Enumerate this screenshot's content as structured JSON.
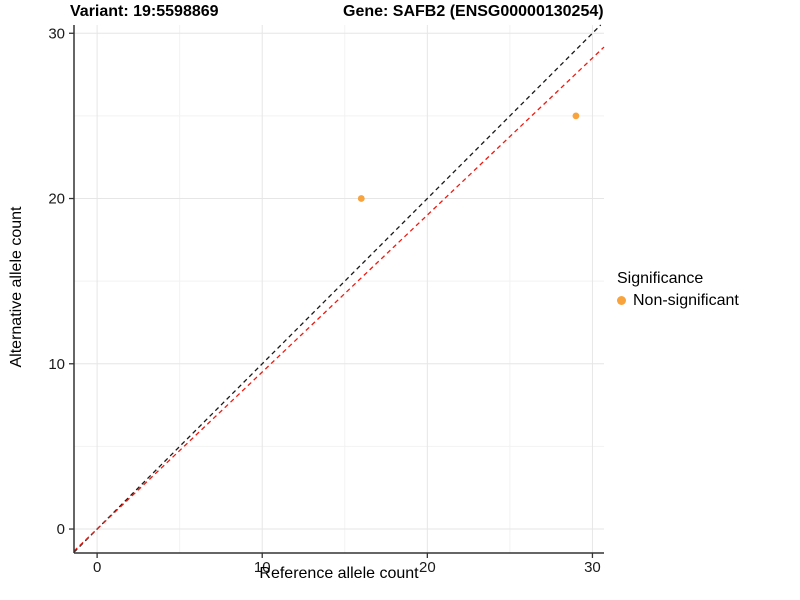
{
  "header": {
    "variant_title": "Variant: 19:5598869",
    "gene_title": "Gene: SAFB2 (ENSG00000130254)"
  },
  "chart_data": {
    "type": "scatter",
    "xlabel": "Reference allele count",
    "ylabel": "Alternative allele count",
    "xlim": [
      -1.4,
      30.7
    ],
    "ylim": [
      -1.45,
      30.5
    ],
    "x_ticks": [
      0,
      10,
      20,
      30
    ],
    "y_ticks": [
      0,
      10,
      20,
      30
    ],
    "x_minor_ticks": [
      5,
      15,
      25
    ],
    "y_minor_ticks": [
      5,
      15,
      25
    ],
    "grid": true,
    "points": [
      {
        "x": 16,
        "y": 20,
        "series": "Non-significant"
      },
      {
        "x": 29,
        "y": 25,
        "series": "Non-significant"
      }
    ],
    "point_color": "#F8A33B",
    "point_radius": 3.4,
    "lines": [
      {
        "name": "identity-line",
        "slope": 1,
        "intercept": 0,
        "color": "#1A1A1A",
        "style": "dashed"
      },
      {
        "name": "expected-ratio-line",
        "slope": 0.95,
        "intercept": 0,
        "color": "#EE1A10",
        "style": "dashed"
      }
    ],
    "legend": {
      "title": "Significance",
      "position": "right",
      "items": [
        {
          "label": "Non-significant",
          "color": "#F8A33B"
        }
      ]
    },
    "colors": {
      "grid_major": "#E6E6E6",
      "grid_minor": "#F2F2F2",
      "axis_line": "#333333",
      "tick_mark": "#333333",
      "tick_label": "#1A1A1A"
    }
  }
}
